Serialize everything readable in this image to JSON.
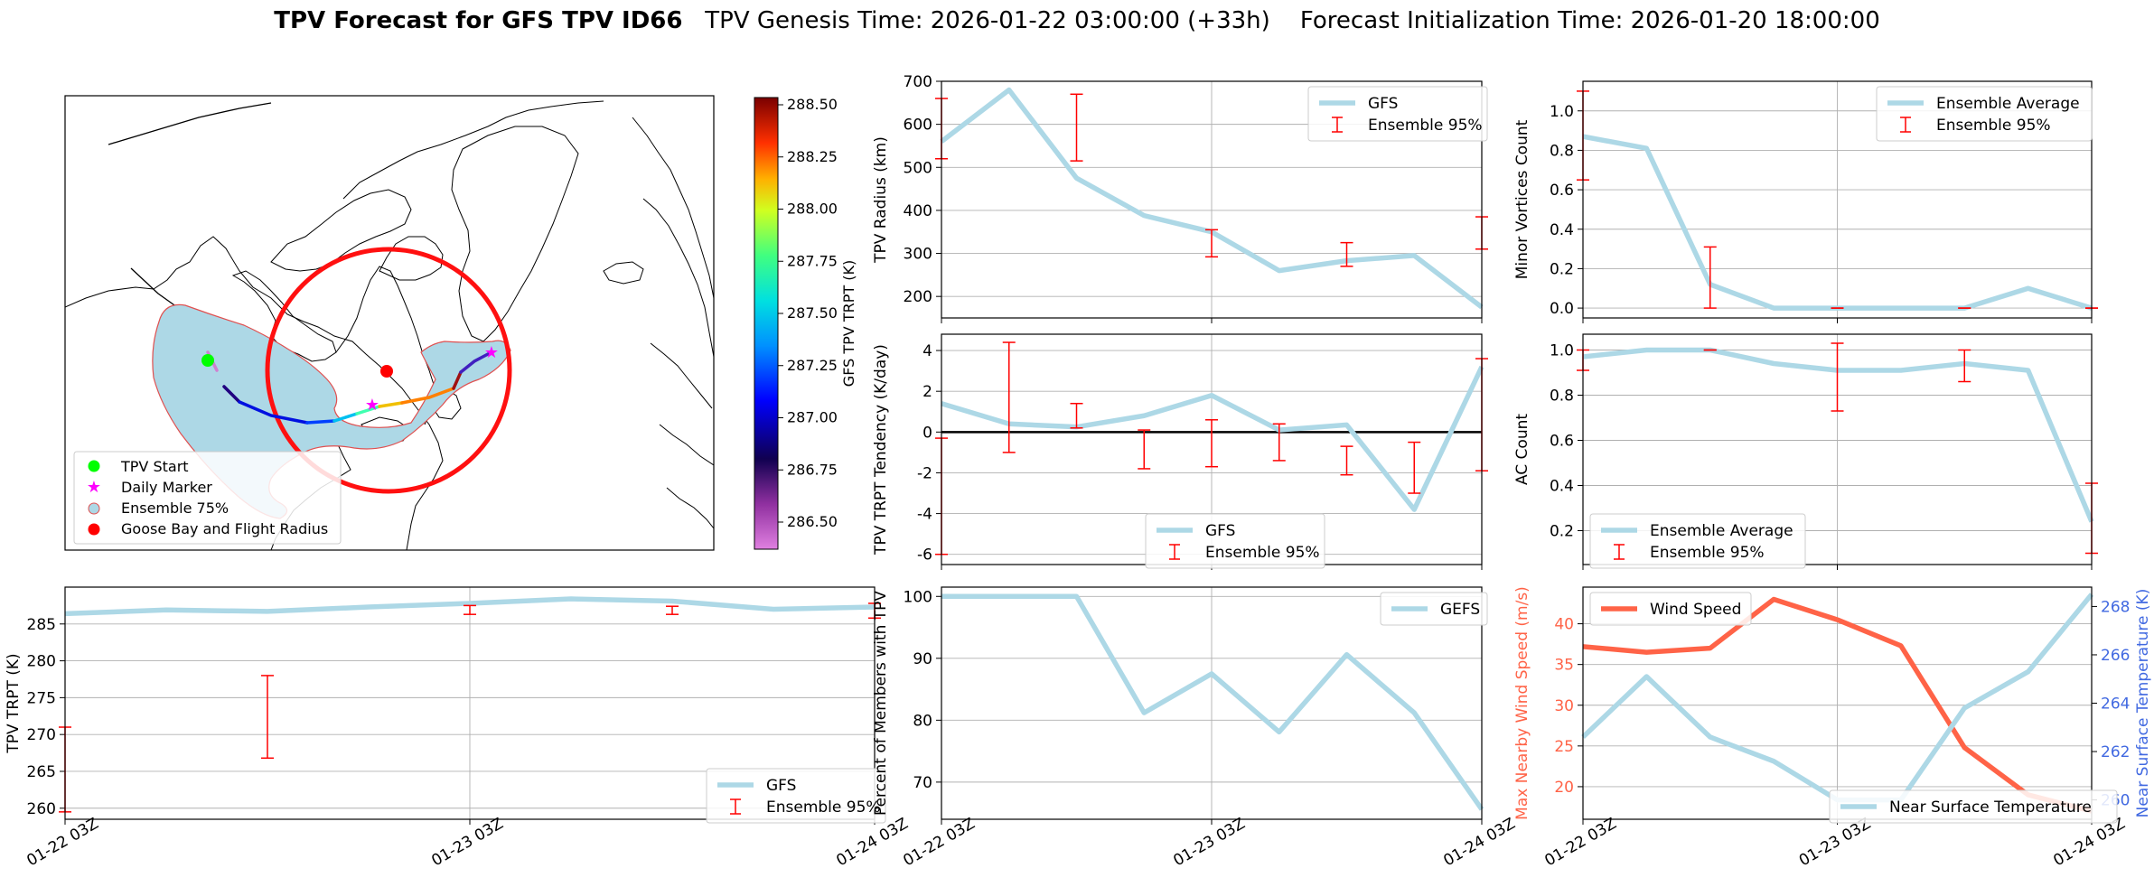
{
  "title": {
    "bold": "TPV Forecast for GFS TPV ID66",
    "genesis": "TPV Genesis Time: 2026-01-22 03:00:00 (+33h)",
    "init": "Forecast Initialization Time: 2026-01-20 18:00:00"
  },
  "colors": {
    "gfs": "#add8e6",
    "err": "#ff0000",
    "wind": "#ff6347",
    "temp_axis": "#4169e1",
    "grid": "#b0b0b0"
  },
  "map": {
    "colorbar_label": "GFS TPV TRPT (K)",
    "colorbar_ticks": [
      "288.50",
      "288.25",
      "288.00",
      "287.75",
      "287.50",
      "287.25",
      "287.00",
      "286.75",
      "286.50"
    ],
    "legend": [
      "TPV Start",
      "Daily Marker",
      "Ensemble 75%",
      "Goose Bay and Flight Radius"
    ]
  },
  "chart_data": [
    {
      "id": "radius",
      "type": "line",
      "title": "",
      "ylabel": "TPV Radius (km)",
      "xlabel": "",
      "x": [
        0,
        1,
        2,
        3,
        4,
        5,
        6,
        7,
        8
      ],
      "ylim": [
        150,
        700
      ],
      "yticks": [
        200,
        300,
        400,
        500,
        600,
        700
      ],
      "series": [
        {
          "name": "GFS",
          "values": [
            560,
            680,
            475,
            388,
            350,
            260,
            283,
            295,
            175
          ]
        }
      ],
      "errorbars": {
        "name": "Ensemble 95%",
        "x": [
          0,
          2,
          4,
          6,
          8
        ],
        "low": [
          520,
          515,
          292,
          270,
          310
        ],
        "high": [
          660,
          670,
          355,
          325,
          385
        ]
      },
      "legend_loc": "upper right"
    },
    {
      "id": "minor",
      "type": "line",
      "title": "",
      "ylabel": "Minor Vortices Count",
      "xlabel": "",
      "x": [
        0,
        1,
        2,
        3,
        4,
        5,
        6,
        7,
        8
      ],
      "ylim": [
        -0.05,
        1.15
      ],
      "yticks": [
        0.0,
        0.2,
        0.4,
        0.6,
        0.8,
        1.0
      ],
      "yticklabels": [
        "0.0",
        "0.2",
        "0.4",
        "0.6",
        "0.8",
        "1.0"
      ],
      "series": [
        {
          "name": "Ensemble Average",
          "values": [
            0.87,
            0.81,
            0.12,
            0.0,
            0.0,
            0.0,
            0.0,
            0.1,
            0.0
          ]
        }
      ],
      "errorbars": {
        "name": "Ensemble 95%",
        "x": [
          0,
          2,
          4,
          6,
          8
        ],
        "low": [
          0.65,
          0.0,
          0.0,
          0.0,
          0.0
        ],
        "high": [
          1.1,
          0.31,
          0.0,
          0.0,
          0.0
        ]
      },
      "legend_loc": "upper right"
    },
    {
      "id": "tendency",
      "type": "line",
      "title": "",
      "ylabel": "TPV TRPT Tendency (K/day)",
      "xlabel": "",
      "x": [
        0,
        1,
        2,
        3,
        4,
        5,
        6,
        7,
        8
      ],
      "ylim": [
        -6.5,
        4.8
      ],
      "yticks": [
        -6,
        -4,
        -2,
        0,
        2,
        4
      ],
      "series": [
        {
          "name": "GFS",
          "values": [
            1.4,
            0.4,
            0.25,
            0.8,
            1.8,
            0.1,
            0.35,
            -3.8,
            3.2
          ]
        }
      ],
      "errorbars": {
        "name": "Ensemble 95%",
        "x": [
          0,
          1,
          2,
          3,
          4,
          5,
          6,
          7,
          8
        ],
        "low": [
          -6.0,
          -1.0,
          0.2,
          -1.8,
          -1.7,
          -1.4,
          -2.1,
          -3.0,
          -1.9
        ],
        "high": [
          -0.3,
          4.4,
          1.4,
          0.1,
          0.6,
          0.4,
          -0.7,
          -0.5,
          3.6
        ]
      },
      "zero_line": true,
      "legend_loc": "lower center"
    },
    {
      "id": "ac",
      "type": "line",
      "title": "",
      "ylabel": "AC Count",
      "xlabel": "",
      "x": [
        0,
        1,
        2,
        3,
        4,
        5,
        6,
        7,
        8
      ],
      "ylim": [
        0.05,
        1.07
      ],
      "yticks": [
        0.2,
        0.4,
        0.6,
        0.8,
        1.0
      ],
      "yticklabels": [
        "0.2",
        "0.4",
        "0.6",
        "0.8",
        "1.0"
      ],
      "series": [
        {
          "name": "Ensemble Average",
          "values": [
            0.97,
            1.0,
            1.0,
            0.94,
            0.91,
            0.91,
            0.94,
            0.91,
            0.24
          ]
        }
      ],
      "errorbars": {
        "name": "Ensemble 95%",
        "x": [
          0,
          2,
          4,
          6,
          8
        ],
        "low": [
          0.91,
          1.0,
          0.73,
          0.86,
          0.1
        ],
        "high": [
          1.0,
          1.0,
          1.03,
          1.0,
          0.41
        ]
      },
      "legend_loc": "lower left"
    },
    {
      "id": "trpt",
      "type": "line",
      "title": "",
      "ylabel": "TPV TRPT (K)",
      "xlabel": "",
      "x": [
        0,
        1,
        2,
        3,
        4,
        5,
        6,
        7,
        8
      ],
      "ylim": [
        258.5,
        290
      ],
      "yticks": [
        260,
        265,
        270,
        275,
        280,
        285
      ],
      "series": [
        {
          "name": "GFS",
          "values": [
            286.4,
            286.9,
            286.7,
            287.3,
            287.8,
            288.4,
            288.1,
            287.0,
            287.3
          ]
        }
      ],
      "errorbars": {
        "name": "Ensemble 95%",
        "x": [
          0,
          2,
          4,
          6,
          8
        ],
        "low": [
          259.5,
          266.8,
          286.3,
          286.3,
          285.8
        ],
        "high": [
          271,
          278,
          287.5,
          287.4,
          287.8
        ]
      },
      "legend_loc": "lower right",
      "xticklabels": [
        "01-22 03Z",
        "01-23 03Z",
        "01-24 03Z"
      ]
    },
    {
      "id": "percent",
      "type": "line",
      "title": "",
      "ylabel": "Percent of Members with TPV",
      "xlabel": "",
      "x": [
        0,
        1,
        2,
        3,
        4,
        5,
        6,
        7,
        8
      ],
      "ylim": [
        64,
        101.5
      ],
      "yticks": [
        70,
        80,
        90,
        100
      ],
      "series": [
        {
          "name": "GEFS",
          "values": [
            100,
            100,
            100,
            81.2,
            87.5,
            78.1,
            90.6,
            81.2,
            65.6
          ]
        }
      ],
      "legend_loc": "upper right",
      "xticklabels": [
        "01-22 03Z",
        "01-23 03Z",
        "01-24 03Z"
      ]
    },
    {
      "id": "wind",
      "type": "line",
      "title": "",
      "ylabel": "Max Nearby Wind Speed (m/s)",
      "ylabel_right": "Near Surface Temperature (K)",
      "x": [
        0,
        1,
        2,
        3,
        4,
        5,
        6,
        7,
        8
      ],
      "ylim": [
        16,
        44.5
      ],
      "yticks": [
        20,
        25,
        30,
        35,
        40
      ],
      "ylim_right": [
        259.2,
        268.8
      ],
      "yticks_right": [
        260,
        262,
        264,
        266,
        268
      ],
      "series": [
        {
          "name": "Wind Speed",
          "axis": "left",
          "values": [
            37.2,
            36.5,
            37.0,
            43.0,
            40.5,
            37.3,
            24.8,
            19.0,
            17.0
          ]
        },
        {
          "name": "Near Surface Temperature",
          "axis": "right",
          "values": [
            262.6,
            265.1,
            262.6,
            261.6,
            260.0,
            260.0,
            263.8,
            265.3,
            268.5
          ]
        }
      ],
      "legend_loc": "upper left / lower right",
      "xticklabels": [
        "01-22 03Z",
        "01-23 03Z",
        "01-24 03Z"
      ]
    }
  ]
}
